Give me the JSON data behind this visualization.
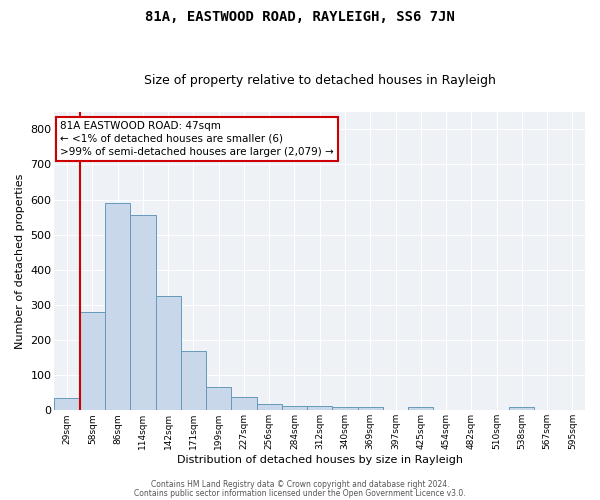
{
  "title": "81A, EASTWOOD ROAD, RAYLEIGH, SS6 7JN",
  "subtitle": "Size of property relative to detached houses in Rayleigh",
  "xlabel": "Distribution of detached houses by size in Rayleigh",
  "ylabel": "Number of detached properties",
  "categories": [
    "29sqm",
    "58sqm",
    "86sqm",
    "114sqm",
    "142sqm",
    "171sqm",
    "199sqm",
    "227sqm",
    "256sqm",
    "284sqm",
    "312sqm",
    "340sqm",
    "369sqm",
    "397sqm",
    "425sqm",
    "454sqm",
    "482sqm",
    "510sqm",
    "538sqm",
    "567sqm",
    "595sqm"
  ],
  "values": [
    35,
    280,
    590,
    555,
    325,
    170,
    65,
    37,
    17,
    12,
    12,
    10,
    10,
    0,
    10,
    0,
    0,
    0,
    8,
    0,
    0
  ],
  "bar_color": "#c8d8ea",
  "bar_edge_color": "#6699bb",
  "ylim": [
    0,
    850
  ],
  "yticks": [
    0,
    100,
    200,
    300,
    400,
    500,
    600,
    700,
    800
  ],
  "property_line_color": "#cc0000",
  "annotation_text": "81A EASTWOOD ROAD: 47sqm\n← <1% of detached houses are smaller (6)\n>99% of semi-detached houses are larger (2,079) →",
  "annotation_box_color": "#ffffff",
  "annotation_box_edge_color": "#cc0000",
  "footer_line1": "Contains HM Land Registry data © Crown copyright and database right 2024.",
  "footer_line2": "Contains public sector information licensed under the Open Government Licence v3.0.",
  "plot_bg_color": "#eef2f7",
  "grid_color": "#ffffff",
  "title_fontsize": 10,
  "subtitle_fontsize": 9
}
